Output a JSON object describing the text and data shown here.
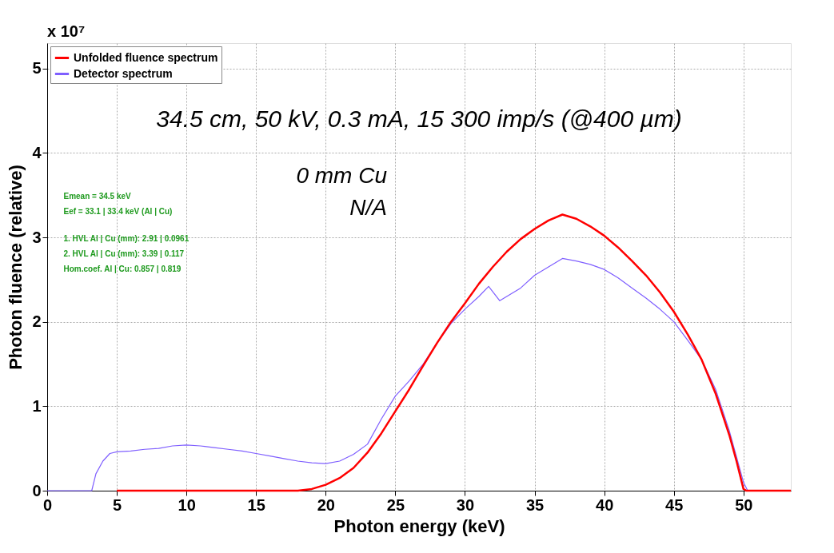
{
  "chart_data": {
    "type": "line",
    "xlabel": "Photon energy (keV)",
    "ylabel": "Photon fluence (relative)",
    "xlim": [
      0,
      53.4
    ],
    "ylim": [
      0,
      5.3
    ],
    "xticks": [
      0,
      5,
      10,
      15,
      20,
      25,
      30,
      35,
      40,
      45,
      50
    ],
    "yticks": [
      0,
      1,
      2,
      3,
      4,
      5
    ],
    "grid": true,
    "legend": "top left",
    "marker": "none",
    "line_style": "solid",
    "annotations": [
      "x 10⁷",
      "34.5 cm, 50 kV, 0.3 mA, 15 300 imp/s (@400 µm)",
      "0 mm Cu",
      "N/A",
      "Emean = 34.5 keV",
      "Eef = 33.1 | 33.4 keV  (Al | Cu)",
      "1. HVL Al | Cu (mm): 2.91 | 0.0961",
      "2. HVL Al | Cu (mm): 3.39 | 0.117",
      "Hom.coef. Al | Cu: 0.857 | 0.819"
    ],
    "series": [
      {
        "name": "Unfolded fluence spectrum",
        "color": "#ff0000",
        "x": [
          5,
          18,
          19,
          20,
          21,
          22,
          23,
          24,
          25,
          26,
          27,
          28,
          29,
          30,
          31,
          32,
          33,
          34,
          35,
          36,
          37,
          38,
          39,
          40,
          41,
          42,
          43,
          44,
          45,
          46,
          47,
          48,
          49,
          49.5,
          50,
          50.2,
          53.4
        ],
        "values": [
          0,
          0,
          0.02,
          0.07,
          0.15,
          0.27,
          0.45,
          0.68,
          0.94,
          1.2,
          1.48,
          1.75,
          2.0,
          2.22,
          2.45,
          2.65,
          2.83,
          2.98,
          3.1,
          3.2,
          3.27,
          3.22,
          3.13,
          3.02,
          2.88,
          2.72,
          2.55,
          2.35,
          2.12,
          1.85,
          1.55,
          1.15,
          0.65,
          0.35,
          0.02,
          0,
          0
        ]
      },
      {
        "name": "Detector spectrum",
        "color": "#7f5fff",
        "x": [
          0,
          3.2,
          3.5,
          4,
          4.5,
          5,
          6,
          7,
          8,
          9,
          10,
          11,
          12,
          13,
          14,
          15,
          16,
          17,
          18,
          19,
          20,
          21,
          22,
          23,
          24,
          25,
          26,
          27,
          28,
          29,
          30,
          31,
          31.7,
          32.5,
          33,
          34,
          35,
          36,
          37,
          38,
          39,
          40,
          41,
          42,
          43,
          44,
          45,
          46,
          47,
          48,
          49,
          49.5,
          50,
          50.3,
          53.4
        ],
        "values": [
          0,
          0,
          0.2,
          0.35,
          0.44,
          0.46,
          0.47,
          0.49,
          0.5,
          0.53,
          0.54,
          0.53,
          0.51,
          0.49,
          0.47,
          0.44,
          0.41,
          0.38,
          0.35,
          0.33,
          0.32,
          0.35,
          0.43,
          0.55,
          0.85,
          1.12,
          1.3,
          1.5,
          1.75,
          1.98,
          2.15,
          2.3,
          2.42,
          2.25,
          2.3,
          2.4,
          2.55,
          2.65,
          2.75,
          2.72,
          2.68,
          2.62,
          2.52,
          2.4,
          2.28,
          2.15,
          2.0,
          1.78,
          1.55,
          1.2,
          0.7,
          0.4,
          0.1,
          0,
          0
        ]
      }
    ]
  }
}
